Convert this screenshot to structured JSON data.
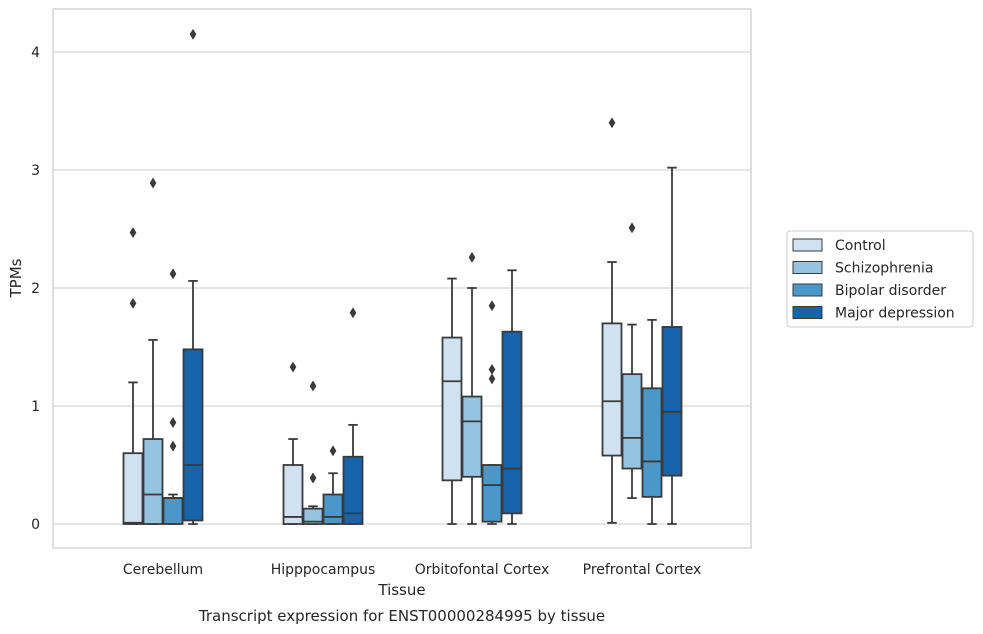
{
  "chart_data": {
    "type": "box",
    "title": "",
    "caption": "Transcript expression for ENST00000284995 by tissue",
    "xlabel": "Tissue",
    "ylabel": "TPMs",
    "ylim": [
      -0.2,
      4.35
    ],
    "yticks": [
      0,
      1,
      2,
      3,
      4
    ],
    "grid": "horizontal",
    "legend_placement": "right",
    "categories": [
      "Cerebellum",
      "Hipppocampus",
      "Orbitofontal Cortex",
      "Prefrontal Cortex"
    ],
    "series": [
      {
        "name": "Control",
        "color": "#d0e1f2",
        "boxes": [
          {
            "whislo": 0.0,
            "q1": 0.0,
            "med": 0.01,
            "q3": 0.6,
            "whishi": 1.2,
            "fliers": [
              1.87,
              2.47
            ]
          },
          {
            "whislo": 0.0,
            "q1": 0.0,
            "med": 0.06,
            "q3": 0.5,
            "whishi": 0.72,
            "fliers": [
              1.33
            ]
          },
          {
            "whislo": 0.0,
            "q1": 0.37,
            "med": 1.21,
            "q3": 1.58,
            "whishi": 2.08,
            "fliers": []
          },
          {
            "whislo": 0.01,
            "q1": 0.58,
            "med": 1.04,
            "q3": 1.7,
            "whishi": 2.22,
            "fliers": [
              3.4
            ]
          }
        ]
      },
      {
        "name": "Schizophrenia",
        "color": "#94c4df",
        "boxes": [
          {
            "whislo": 0.0,
            "q1": 0.0,
            "med": 0.25,
            "q3": 0.72,
            "whishi": 1.56,
            "fliers": [
              2.89
            ]
          },
          {
            "whislo": 0.0,
            "q1": 0.0,
            "med": 0.02,
            "q3": 0.13,
            "whishi": 0.15,
            "fliers": [
              0.39,
              1.17
            ]
          },
          {
            "whislo": 0.0,
            "q1": 0.4,
            "med": 0.87,
            "q3": 1.08,
            "whishi": 2.0,
            "fliers": [
              2.26
            ]
          },
          {
            "whislo": 0.22,
            "q1": 0.47,
            "med": 0.73,
            "q3": 1.27,
            "whishi": 1.69,
            "fliers": [
              2.51
            ]
          }
        ]
      },
      {
        "name": "Bipolar disorder",
        "color": "#4a98c9",
        "boxes": [
          {
            "whislo": 0.0,
            "q1": 0.0,
            "med": 0.22,
            "q3": 0.22,
            "whishi": 0.25,
            "fliers": [
              0.66,
              0.86,
              2.12
            ]
          },
          {
            "whislo": 0.0,
            "q1": 0.0,
            "med": 0.06,
            "q3": 0.25,
            "whishi": 0.43,
            "fliers": [
              0.62
            ]
          },
          {
            "whislo": 0.0,
            "q1": 0.02,
            "med": 0.33,
            "q3": 0.5,
            "whishi": 0.5,
            "fliers": [
              1.23,
              1.31,
              1.85
            ]
          },
          {
            "whislo": 0.0,
            "q1": 0.23,
            "med": 0.53,
            "q3": 1.15,
            "whishi": 1.73,
            "fliers": []
          }
        ]
      },
      {
        "name": "Major depression",
        "color": "#1764ab",
        "boxes": [
          {
            "whislo": 0.0,
            "q1": 0.03,
            "med": 0.5,
            "q3": 1.48,
            "whishi": 2.06,
            "fliers": [
              4.15
            ]
          },
          {
            "whislo": 0.0,
            "q1": 0.0,
            "med": 0.09,
            "q3": 0.57,
            "whishi": 0.84,
            "fliers": [
              1.79
            ]
          },
          {
            "whislo": 0.0,
            "q1": 0.09,
            "med": 0.47,
            "q3": 1.63,
            "whishi": 2.15,
            "fliers": []
          },
          {
            "whislo": 0.0,
            "q1": 0.41,
            "med": 0.95,
            "q3": 1.67,
            "whishi": 3.02,
            "fliers": []
          }
        ]
      }
    ]
  }
}
